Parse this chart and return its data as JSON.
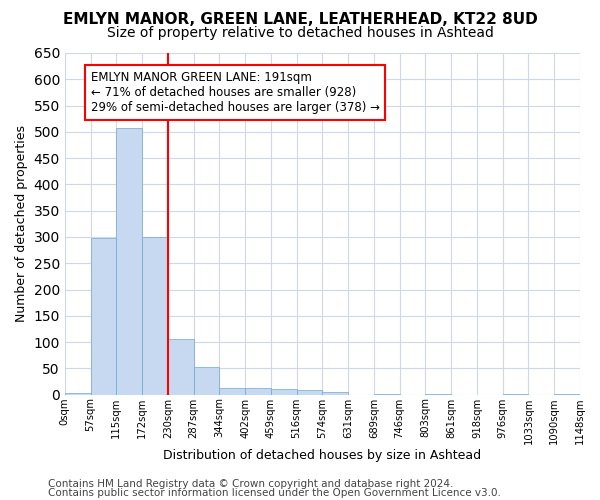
{
  "title1": "EMLYN MANOR, GREEN LANE, LEATHERHEAD, KT22 8UD",
  "title2": "Size of property relative to detached houses in Ashtead",
  "xlabel": "Distribution of detached houses by size in Ashtead",
  "ylabel": "Number of detached properties",
  "footnote1": "Contains HM Land Registry data © Crown copyright and database right 2024.",
  "footnote2": "Contains public sector information licensed under the Open Government Licence v3.0.",
  "annotation_line1": "EMLYN MANOR GREEN LANE: 191sqm",
  "annotation_line2": "← 71% of detached houses are smaller (928)",
  "annotation_line3": "29% of semi-detached houses are larger (378) →",
  "bar_values": [
    3,
    298,
    507,
    300,
    106,
    53,
    12,
    13,
    11,
    8,
    5,
    0,
    1,
    0,
    2,
    0,
    0,
    1,
    0,
    1
  ],
  "bin_labels": [
    "0sqm",
    "57sqm",
    "115sqm",
    "172sqm",
    "230sqm",
    "287sqm",
    "344sqm",
    "402sqm",
    "459sqm",
    "516sqm",
    "574sqm",
    "631sqm",
    "689sqm",
    "746sqm",
    "803sqm",
    "861sqm",
    "918sqm",
    "976sqm",
    "1033sqm",
    "1090sqm",
    "1148sqm"
  ],
  "bar_color": "#c6d9f0",
  "bar_edge_color": "#6fa8d0",
  "red_line_x": 3.5,
  "ylim": [
    0,
    650
  ],
  "yticks": [
    0,
    50,
    100,
    150,
    200,
    250,
    300,
    350,
    400,
    450,
    500,
    550,
    600,
    650
  ],
  "grid_color": "#d0d8e8",
  "background_color": "#ffffff",
  "title1_fontsize": 11,
  "title2_fontsize": 10,
  "annotation_fontsize": 8.5,
  "xlabel_fontsize": 9,
  "ylabel_fontsize": 9,
  "footnote_fontsize": 7.5
}
